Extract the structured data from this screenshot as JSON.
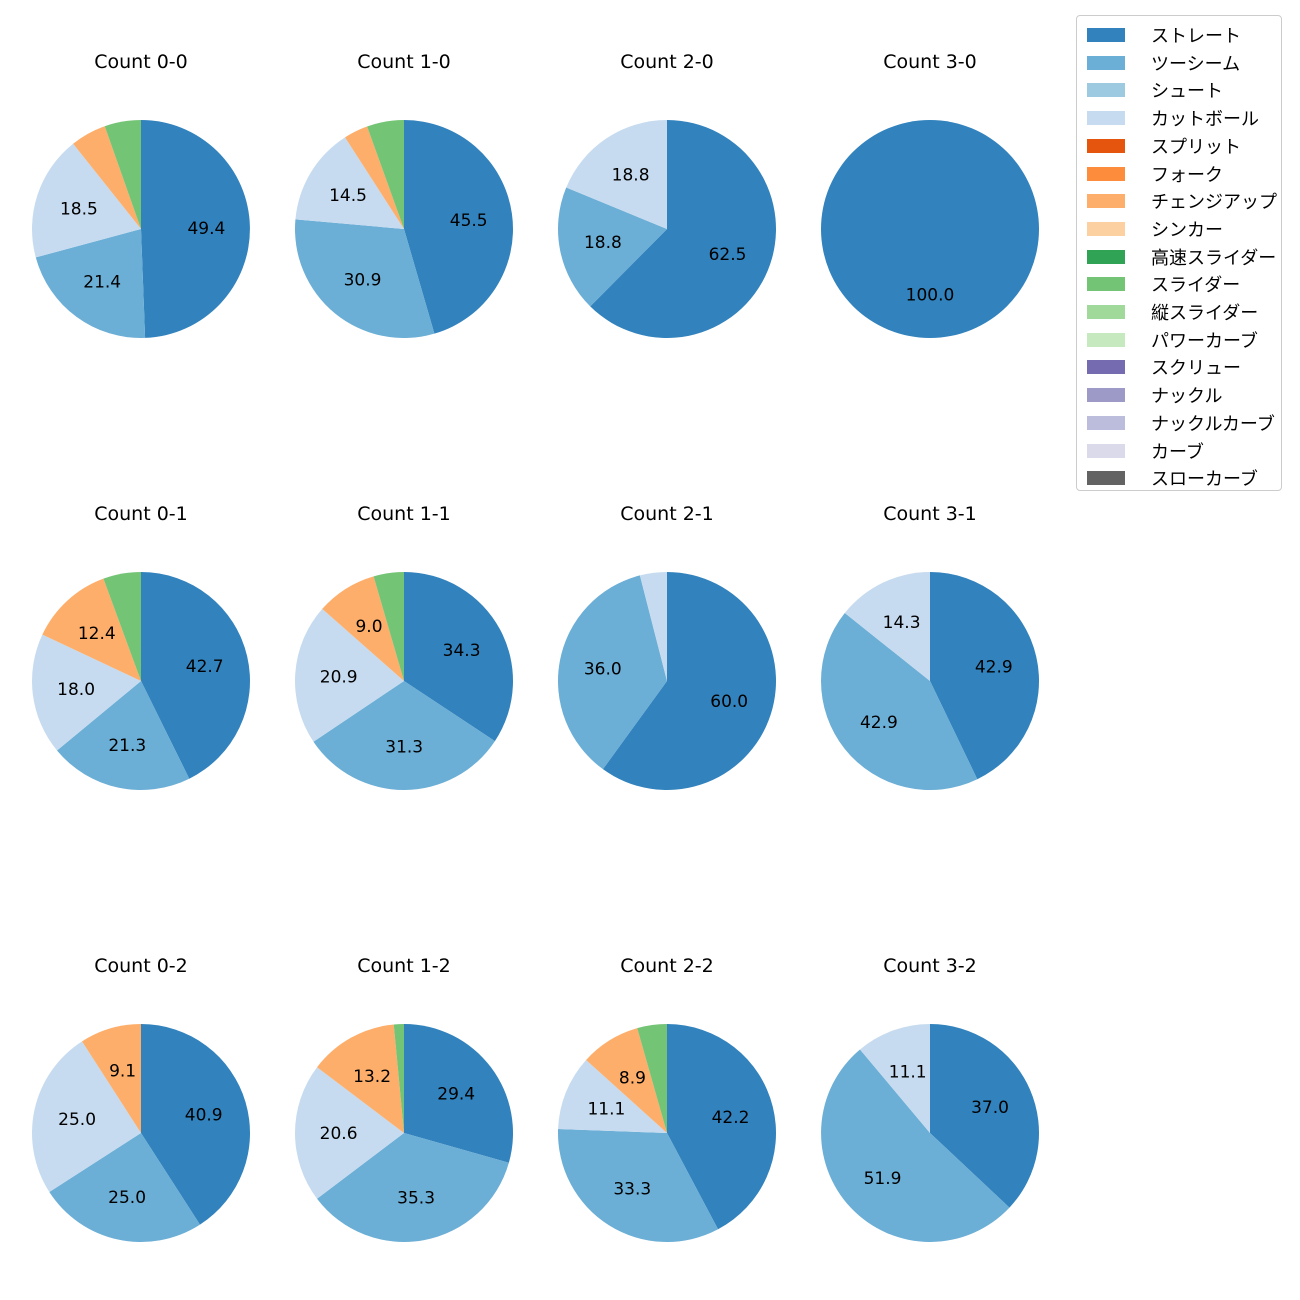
{
  "chart_data": {
    "type": "pie",
    "legend": {
      "position": "top-right",
      "entries": [
        {
          "label": "ストレート",
          "color": "#3182bd"
        },
        {
          "label": "ツーシーム",
          "color": "#6baed6"
        },
        {
          "label": "シュート",
          "color": "#9ecae1"
        },
        {
          "label": "カットボール",
          "color": "#c6dbef"
        },
        {
          "label": "スプリット",
          "color": "#e6550d"
        },
        {
          "label": "フォーク",
          "color": "#fd8d3c"
        },
        {
          "label": "チェンジアップ",
          "color": "#fdae6b"
        },
        {
          "label": "シンカー",
          "color": "#fdd0a2"
        },
        {
          "label": "高速スライダー",
          "color": "#31a354"
        },
        {
          "label": "スライダー",
          "color": "#74c476"
        },
        {
          "label": "縦スライダー",
          "color": "#a1d99b"
        },
        {
          "label": "パワーカーブ",
          "color": "#c7e9c0"
        },
        {
          "label": "スクリュー",
          "color": "#756bb1"
        },
        {
          "label": "ナックル",
          "color": "#9e9ac8"
        },
        {
          "label": "ナックルカーブ",
          "color": "#bcbddc"
        },
        {
          "label": "カーブ",
          "color": "#dadaeb"
        },
        {
          "label": "スローカーブ",
          "color": "#636363"
        }
      ]
    },
    "pies": [
      {
        "title": "Count 0-0",
        "slices": [
          {
            "pitch": "ストレート",
            "value": 49.4,
            "label": "49.4"
          },
          {
            "pitch": "ツーシーム",
            "value": 21.4,
            "label": "21.4"
          },
          {
            "pitch": "カットボール",
            "value": 18.5,
            "label": "18.5"
          },
          {
            "pitch": "チェンジアップ",
            "value": 5.3,
            "label": ""
          },
          {
            "pitch": "スライダー",
            "value": 5.4,
            "label": ""
          }
        ]
      },
      {
        "title": "Count 1-0",
        "slices": [
          {
            "pitch": "ストレート",
            "value": 45.5,
            "label": "45.5"
          },
          {
            "pitch": "ツーシーム",
            "value": 30.9,
            "label": "30.9"
          },
          {
            "pitch": "カットボール",
            "value": 14.5,
            "label": "14.5"
          },
          {
            "pitch": "チェンジアップ",
            "value": 3.6,
            "label": ""
          },
          {
            "pitch": "スライダー",
            "value": 5.5,
            "label": ""
          }
        ]
      },
      {
        "title": "Count 2-0",
        "slices": [
          {
            "pitch": "ストレート",
            "value": 62.5,
            "label": "62.5"
          },
          {
            "pitch": "ツーシーム",
            "value": 18.8,
            "label": "18.8"
          },
          {
            "pitch": "カットボール",
            "value": 18.8,
            "label": "18.8"
          }
        ]
      },
      {
        "title": "Count 3-0",
        "slices": [
          {
            "pitch": "ストレート",
            "value": 100.0,
            "label": "100.0"
          }
        ]
      },
      {
        "title": "Count 0-1",
        "slices": [
          {
            "pitch": "ストレート",
            "value": 42.7,
            "label": "42.7"
          },
          {
            "pitch": "ツーシーム",
            "value": 21.3,
            "label": "21.3"
          },
          {
            "pitch": "カットボール",
            "value": 18.0,
            "label": "18.0"
          },
          {
            "pitch": "チェンジアップ",
            "value": 12.4,
            "label": "12.4"
          },
          {
            "pitch": "スライダー",
            "value": 5.6,
            "label": ""
          }
        ]
      },
      {
        "title": "Count 1-1",
        "slices": [
          {
            "pitch": "ストレート",
            "value": 34.3,
            "label": "34.3"
          },
          {
            "pitch": "ツーシーム",
            "value": 31.3,
            "label": "31.3"
          },
          {
            "pitch": "カットボール",
            "value": 20.9,
            "label": "20.9"
          },
          {
            "pitch": "チェンジアップ",
            "value": 9.0,
            "label": "9.0"
          },
          {
            "pitch": "スライダー",
            "value": 4.5,
            "label": ""
          }
        ]
      },
      {
        "title": "Count 2-1",
        "slices": [
          {
            "pitch": "ストレート",
            "value": 60.0,
            "label": "60.0"
          },
          {
            "pitch": "ツーシーム",
            "value": 36.0,
            "label": "36.0"
          },
          {
            "pitch": "カットボール",
            "value": 4.0,
            "label": ""
          }
        ]
      },
      {
        "title": "Count 3-1",
        "slices": [
          {
            "pitch": "ストレート",
            "value": 42.9,
            "label": "42.9"
          },
          {
            "pitch": "ツーシーム",
            "value": 42.9,
            "label": "42.9"
          },
          {
            "pitch": "カットボール",
            "value": 14.3,
            "label": "14.3"
          }
        ]
      },
      {
        "title": "Count 0-2",
        "slices": [
          {
            "pitch": "ストレート",
            "value": 40.9,
            "label": "40.9"
          },
          {
            "pitch": "ツーシーム",
            "value": 25.0,
            "label": "25.0"
          },
          {
            "pitch": "カットボール",
            "value": 25.0,
            "label": "25.0"
          },
          {
            "pitch": "チェンジアップ",
            "value": 9.1,
            "label": "9.1"
          }
        ]
      },
      {
        "title": "Count 1-2",
        "slices": [
          {
            "pitch": "ストレート",
            "value": 29.4,
            "label": "29.4"
          },
          {
            "pitch": "ツーシーム",
            "value": 35.3,
            "label": "35.3"
          },
          {
            "pitch": "カットボール",
            "value": 20.6,
            "label": "20.6"
          },
          {
            "pitch": "チェンジアップ",
            "value": 13.2,
            "label": "13.2"
          },
          {
            "pitch": "スライダー",
            "value": 1.5,
            "label": ""
          }
        ]
      },
      {
        "title": "Count 2-2",
        "slices": [
          {
            "pitch": "ストレート",
            "value": 42.2,
            "label": "42.2"
          },
          {
            "pitch": "ツーシーム",
            "value": 33.3,
            "label": "33.3"
          },
          {
            "pitch": "カットボール",
            "value": 11.1,
            "label": "11.1"
          },
          {
            "pitch": "チェンジアップ",
            "value": 8.9,
            "label": "8.9"
          },
          {
            "pitch": "スライダー",
            "value": 4.4,
            "label": ""
          }
        ]
      },
      {
        "title": "Count 3-2",
        "slices": [
          {
            "pitch": "ストレート",
            "value": 37.0,
            "label": "37.0"
          },
          {
            "pitch": "ツーシーム",
            "value": 51.9,
            "label": "51.9"
          },
          {
            "pitch": "カットボール",
            "value": 11.1,
            "label": "11.1"
          }
        ]
      }
    ]
  }
}
